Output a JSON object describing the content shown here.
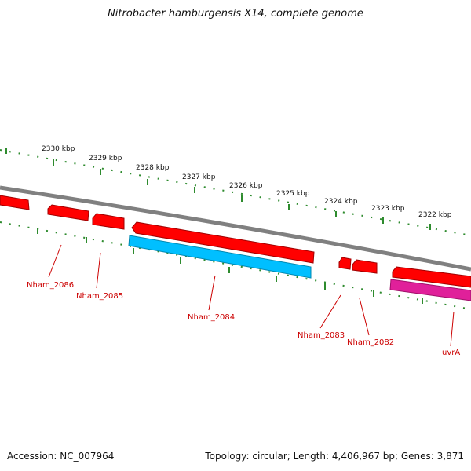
{
  "title": "Nitrobacter hamburgensis X14, complete genome",
  "footer": {
    "accession": "Accession: NC_007964",
    "summary": "Topology: circular; Length: 4,406,967 bp; Genes: 3,871"
  },
  "colors": {
    "backbone": "#808080",
    "tick": "#2e8b2e",
    "gene_red": "#ff0000",
    "gene_blue": "#00bfff",
    "gene_magenta": "#e0209a",
    "label": "#cc0000"
  },
  "scale_labels": [
    "2330 kbp",
    "2329 kbp",
    "2328 kbp",
    "2327 kbp",
    "2326 kbp",
    "2325 kbp",
    "2324 kbp",
    "2323 kbp",
    "2322 kbp"
  ],
  "gene_labels": [
    "Nham_2086",
    "Nham_2085",
    "Nham_2084",
    "Nham_2083",
    "Nham_2082",
    "uvrA"
  ]
}
